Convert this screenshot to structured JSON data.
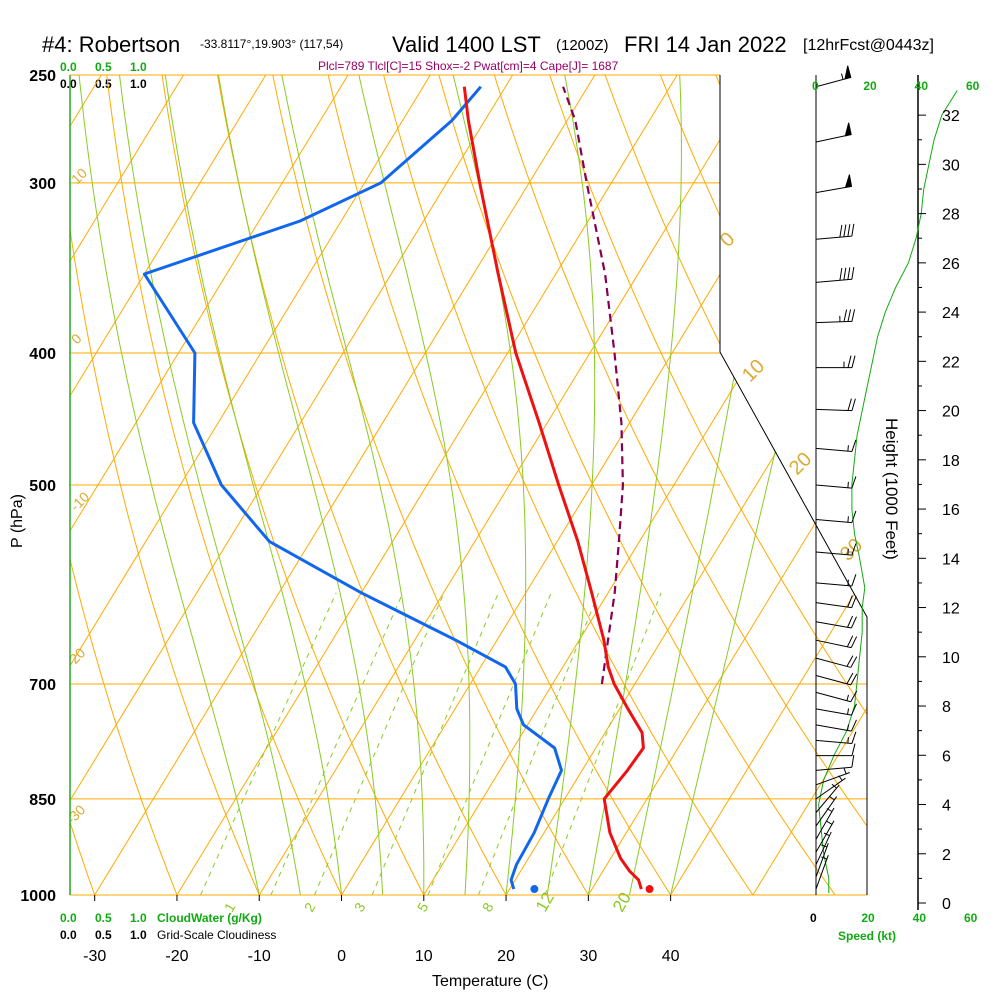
{
  "header": {
    "station": "#4: Robertson",
    "location": "-33.8117°,19.903° (117,54)",
    "valid": "Valid 1400 LST",
    "zulu": "(1200Z)",
    "date": "FRI 14 Jan 2022",
    "forecast": "[12hrFcst@0443z]"
  },
  "params": "Plcl=789 Tlcl[C]=15 Shox=-2 Pwat[cm]=4 Cape[J]= 1687",
  "colors": {
    "temperature": "#ee1111",
    "dewpoint": "#1166ee",
    "parcel": "#880055",
    "isotherm": "#ffaa00",
    "dry_adiabat": "#ffaa00",
    "moist_adiabat": "#88cc22",
    "mixing_ratio": "#88cc22",
    "wind_speed": "#11aa11",
    "cloud_axis": "#11aa11"
  },
  "cloud_axes": {
    "top_green": [
      "0.0",
      "0.5",
      "1.0"
    ],
    "top_black": [
      "0.0",
      "0.5",
      "1.0"
    ],
    "bottom_green": [
      "0.0",
      "0.5",
      "1.0"
    ],
    "bottom_black": [
      "0.0",
      "0.5",
      "1.0"
    ],
    "cloudwater_label": "CloudWater (g/Kg)",
    "cloudiness_label": "Grid-Scale Cloudiness"
  },
  "chart_data": {
    "type": "skew-t",
    "title": "#4: Robertson Valid 1400 LST (1200Z) FRI 14 Jan 2022",
    "xlabel": "Temperature (C)",
    "ylabel": "P (hPa)",
    "x_ticks": [
      "-30",
      "-20",
      "-10",
      "0",
      "10",
      "20",
      "30",
      "40"
    ],
    "x_tick_values": [
      -30,
      -20,
      -10,
      0,
      10,
      20,
      30,
      40
    ],
    "xlim": [
      -33,
      46
    ],
    "pressure_ticks": [
      "250",
      "300",
      "400",
      "500",
      "700",
      "850",
      "1000"
    ],
    "pressure_values": [
      250,
      300,
      400,
      500,
      700,
      850,
      1000
    ],
    "ylim_hpa": [
      1000,
      250
    ],
    "dry_adiabat_labels": [
      "10",
      "0",
      "-10",
      "-20",
      "-30",
      "0",
      "10",
      "20",
      "30"
    ],
    "mixing_ratio_labels": [
      "1",
      "2",
      "3",
      "5",
      "8",
      "12",
      "20"
    ],
    "temperature_profile": {
      "name": "Temperature",
      "pressure": [
        990,
        975,
        960,
        940,
        900,
        850,
        810,
        780,
        760,
        730,
        700,
        680,
        650,
        600,
        550,
        500,
        450,
        400,
        350,
        300,
        270,
        255
      ],
      "values": [
        36.0,
        35.0,
        33.2,
        31.2,
        28.0,
        24.8,
        25.5,
        25.8,
        24.5,
        21.0,
        17.5,
        15.5,
        13.0,
        8.0,
        2.5,
        -4.0,
        -11.0,
        -19.0,
        -27.0,
        -36.0,
        -42.0,
        -45.0
      ]
    },
    "dewpoint_profile": {
      "name": "Dew point",
      "pressure": [
        990,
        975,
        950,
        900,
        850,
        810,
        780,
        750,
        730,
        700,
        680,
        650,
        600,
        550,
        500,
        450,
        400,
        350,
        320,
        300,
        270,
        255
      ],
      "values": [
        20.5,
        19.5,
        19.0,
        18.8,
        18.0,
        17.5,
        15.0,
        9.5,
        7.5,
        5.5,
        3.0,
        -5.0,
        -20.0,
        -35.0,
        -45.0,
        -53.0,
        -58.0,
        -70.0,
        -55.0,
        -48.0,
        -44.0,
        -43.0
      ]
    },
    "parcel_profile": {
      "name": "Parcel",
      "pressure": [
        700,
        650,
        600,
        550,
        500,
        450,
        400,
        350,
        300,
        270,
        255
      ],
      "values": [
        16.0,
        13.5,
        10.8,
        7.5,
        3.8,
        -1.0,
        -7.0,
        -14.0,
        -23.0,
        -29.0,
        -33.0
      ]
    },
    "surface_temperature": {
      "value": 37.0,
      "pressure": 990
    },
    "surface_dewpoint": {
      "value": 23.0,
      "pressure": 990
    },
    "wind_speed_axis": {
      "label": "Speed (kt)",
      "ticks": [
        "0",
        "20",
        "40",
        "60"
      ],
      "tick_values": [
        0,
        20,
        40,
        60
      ]
    },
    "wind_speed_profile": {
      "name": "Wind speed (kt)",
      "height_kft": [
        0.4,
        1.0,
        2.0,
        3.0,
        4.0,
        5.0,
        6.0,
        7.0,
        8.0,
        9.0,
        10.0,
        11.0,
        12.0,
        12.8,
        14.0,
        15.0,
        16.0,
        17.0,
        18.0,
        19.0,
        20.0,
        21.0,
        22.0,
        23.0,
        24.0,
        25.0,
        26.0,
        27.0,
        28.0,
        29.0,
        30.0,
        31.0,
        32.0,
        33.0
      ],
      "values": [
        5,
        5,
        3,
        2,
        1,
        3,
        7,
        12,
        15,
        16,
        17,
        18,
        18,
        19,
        17,
        15,
        14,
        14,
        15,
        16,
        18,
        20,
        22,
        24,
        27,
        31,
        36,
        39,
        41,
        42,
        44,
        46,
        49,
        55
      ]
    },
    "height_axis": {
      "label": "Height (1000 Feet)",
      "ticks": [
        "0",
        "2",
        "4",
        "6",
        "8",
        "10",
        "12",
        "14",
        "16",
        "18",
        "20",
        "22",
        "24",
        "26",
        "28",
        "30",
        "32"
      ],
      "tick_values": [
        0,
        2,
        4,
        6,
        8,
        10,
        12,
        14,
        16,
        18,
        20,
        22,
        24,
        26,
        28,
        30,
        32
      ]
    },
    "wind_barbs": {
      "pressure": [
        255,
        280,
        305,
        330,
        355,
        380,
        410,
        440,
        470,
        500,
        530,
        560,
        590,
        610,
        630,
        650,
        670,
        690,
        710,
        730,
        750,
        770,
        790,
        810,
        830,
        850,
        870,
        890,
        910,
        930,
        950,
        970,
        990
      ],
      "speed_kt": [
        55,
        50,
        50,
        40,
        40,
        35,
        25,
        20,
        15,
        15,
        15,
        15,
        15,
        20,
        20,
        20,
        20,
        20,
        15,
        15,
        15,
        15,
        10,
        10,
        5,
        5,
        5,
        5,
        5,
        5,
        5,
        5,
        5
      ],
      "direction_deg": [
        255,
        258,
        260,
        265,
        265,
        268,
        270,
        272,
        275,
        275,
        275,
        275,
        275,
        278,
        280,
        282,
        285,
        285,
        285,
        280,
        280,
        275,
        270,
        265,
        250,
        235,
        220,
        215,
        210,
        210,
        205,
        200,
        200
      ]
    }
  }
}
